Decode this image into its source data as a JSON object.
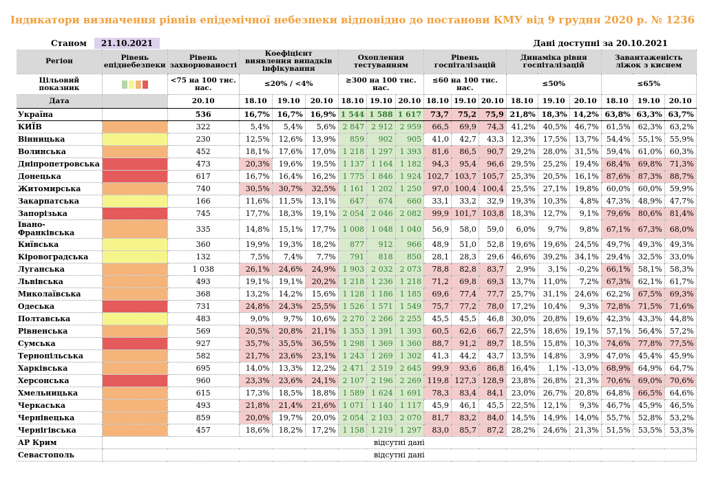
{
  "title": "Індикатори визначення рівнів епідемічної небезпеки відповідно до постанови КМУ від 9 грудня 2020 р. № 1236",
  "as_of_label": "Станом на",
  "as_of_date": "21.10.2021",
  "data_available": "Дані доступні за 20.10.2021",
  "colors": {
    "orange": "#f4b47a",
    "yellow": "#f6f58c",
    "red": "#e55a5a",
    "green": "#b6d7a8",
    "title": "#f0a03c"
  },
  "headers": {
    "region": "Регіон",
    "level": "Рівень епіднебезпеки",
    "incidence": "Рівень захворюваності",
    "detection": "Коефіцієнт виявлення випадків інфікування",
    "testing": "Охоплення тестуванням",
    "hosp": "Рівень госпіталізацій",
    "hosp_dyn": "Динаміка рівня госпіталізацій",
    "oxygen": "Завантаженість ліжок з киснем"
  },
  "targets": {
    "label": "Цільовий показник",
    "incidence": "<75 на 100 тис. нас.",
    "detection": "≤20% / <4%",
    "testing": "≥300 на 100 тис. нас.",
    "hosp": "≤60 на 100 тис. нас.",
    "hosp_dyn": "≤50%",
    "oxygen": "≤65%"
  },
  "date_row": {
    "label": "Дата",
    "incidence": "20.10",
    "d1": "18.10",
    "d2": "19.10",
    "d3": "20.10"
  },
  "missing_text": "відсутні дані",
  "rows": [
    {
      "name": "Україна",
      "level": "",
      "inc": "536",
      "det": [
        "16,7%",
        "16,7%",
        "16,9%"
      ],
      "test": [
        "1 544",
        "1 588",
        "1 617"
      ],
      "hosp": [
        "73,7",
        "75,2",
        "75,9"
      ],
      "dyn": [
        "21,8%",
        "18,3%",
        "14,2%"
      ],
      "oxy": [
        "63,8%",
        "63,3%",
        "63,7%"
      ],
      "detR": [
        0,
        0,
        0
      ],
      "hospR": [
        1,
        1,
        1
      ],
      "oxyR": [
        0,
        0,
        0
      ]
    },
    {
      "name": "КИЇВ",
      "level": "orange",
      "inc": "322",
      "det": [
        "5,4%",
        "5,4%",
        "5,6%"
      ],
      "test": [
        "2 847",
        "2 912",
        "2 959"
      ],
      "hosp": [
        "66,5",
        "69,9",
        "74,3"
      ],
      "dyn": [
        "41,2%",
        "40,5%",
        "46,7%"
      ],
      "oxy": [
        "61,5%",
        "62,3%",
        "63,2%"
      ],
      "detR": [
        0,
        0,
        0
      ],
      "hospR": [
        1,
        1,
        1
      ],
      "oxyR": [
        0,
        0,
        0
      ]
    },
    {
      "name": "Вінницька",
      "level": "yellow",
      "inc": "230",
      "det": [
        "12,5%",
        "12,6%",
        "13,9%"
      ],
      "test": [
        "859",
        "902",
        "905"
      ],
      "hosp": [
        "41,0",
        "42,7",
        "43,3"
      ],
      "dyn": [
        "12,3%",
        "17,5%",
        "13,7%"
      ],
      "oxy": [
        "54,4%",
        "55,1%",
        "55,9%"
      ],
      "detR": [
        0,
        0,
        0
      ],
      "hospR": [
        0,
        0,
        0
      ],
      "oxyR": [
        0,
        0,
        0
      ]
    },
    {
      "name": "Волинська",
      "level": "orange",
      "inc": "452",
      "det": [
        "18,1%",
        "17,6%",
        "17,0%"
      ],
      "test": [
        "1 218",
        "1 297",
        "1 393"
      ],
      "hosp": [
        "81,6",
        "86,5",
        "90,7"
      ],
      "dyn": [
        "29,2%",
        "28,0%",
        "31,5%"
      ],
      "oxy": [
        "59,4%",
        "61,0%",
        "60,3%"
      ],
      "detR": [
        0,
        0,
        0
      ],
      "hospR": [
        1,
        1,
        1
      ],
      "oxyR": [
        0,
        0,
        0
      ]
    },
    {
      "name": "Дніпропетровська",
      "level": "red",
      "inc": "473",
      "det": [
        "20,3%",
        "19,6%",
        "19,5%"
      ],
      "test": [
        "1 137",
        "1 164",
        "1 182"
      ],
      "hosp": [
        "94,3",
        "95,4",
        "96,6"
      ],
      "dyn": [
        "29,5%",
        "25,2%",
        "19,4%"
      ],
      "oxy": [
        "68,4%",
        "69,8%",
        "71,3%"
      ],
      "detR": [
        1,
        0,
        0
      ],
      "hospR": [
        1,
        1,
        1
      ],
      "oxyR": [
        1,
        1,
        1
      ]
    },
    {
      "name": "Донецька",
      "level": "red",
      "inc": "617",
      "det": [
        "16,7%",
        "16,4%",
        "16,2%"
      ],
      "test": [
        "1 775",
        "1 846",
        "1 924"
      ],
      "hosp": [
        "102,7",
        "103,7",
        "105,7"
      ],
      "dyn": [
        "25,3%",
        "20,5%",
        "16,1%"
      ],
      "oxy": [
        "87,6%",
        "87,3%",
        "88,7%"
      ],
      "detR": [
        0,
        0,
        0
      ],
      "hospR": [
        1,
        1,
        1
      ],
      "oxyR": [
        1,
        1,
        1
      ]
    },
    {
      "name": "Житомирська",
      "level": "orange",
      "inc": "740",
      "det": [
        "30,5%",
        "30,7%",
        "32,5%"
      ],
      "test": [
        "1 161",
        "1 202",
        "1 250"
      ],
      "hosp": [
        "97,0",
        "100,4",
        "100,4"
      ],
      "dyn": [
        "25,5%",
        "27,1%",
        "19,8%"
      ],
      "oxy": [
        "60,0%",
        "60,0%",
        "59,9%"
      ],
      "detR": [
        1,
        1,
        1
      ],
      "hospR": [
        1,
        1,
        1
      ],
      "oxyR": [
        0,
        0,
        0
      ]
    },
    {
      "name": "Закарпатська",
      "level": "yellow",
      "inc": "166",
      "det": [
        "11,6%",
        "11,5%",
        "13,1%"
      ],
      "test": [
        "647",
        "674",
        "660"
      ],
      "hosp": [
        "33,1",
        "33,2",
        "32,9"
      ],
      "dyn": [
        "19,3%",
        "10,3%",
        "4,8%"
      ],
      "oxy": [
        "47,3%",
        "48,9%",
        "47,7%"
      ],
      "detR": [
        0,
        0,
        0
      ],
      "hospR": [
        0,
        0,
        0
      ],
      "oxyR": [
        0,
        0,
        0
      ]
    },
    {
      "name": "Запорізька",
      "level": "red",
      "inc": "745",
      "det": [
        "17,7%",
        "18,3%",
        "19,1%"
      ],
      "test": [
        "2 054",
        "2 046",
        "2 082"
      ],
      "hosp": [
        "99,9",
        "101,7",
        "103,8"
      ],
      "dyn": [
        "18,3%",
        "12,7%",
        "9,1%"
      ],
      "oxy": [
        "79,6%",
        "80,6%",
        "81,4%"
      ],
      "detR": [
        0,
        0,
        0
      ],
      "hospR": [
        1,
        1,
        1
      ],
      "oxyR": [
        1,
        1,
        1
      ]
    },
    {
      "name": "Івано-Франківська",
      "level": "orange",
      "inc": "335",
      "det": [
        "14,8%",
        "15,1%",
        "17,7%"
      ],
      "test": [
        "1 008",
        "1 048",
        "1 040"
      ],
      "hosp": [
        "56,9",
        "58,0",
        "59,0"
      ],
      "dyn": [
        "6,0%",
        "9,7%",
        "9,8%"
      ],
      "oxy": [
        "67,1%",
        "67,3%",
        "68,0%"
      ],
      "detR": [
        0,
        0,
        0
      ],
      "hospR": [
        0,
        0,
        0
      ],
      "oxyR": [
        1,
        1,
        1
      ]
    },
    {
      "name": "Київська",
      "level": "yellow",
      "inc": "360",
      "det": [
        "19,9%",
        "19,3%",
        "18,2%"
      ],
      "test": [
        "877",
        "912",
        "966"
      ],
      "hosp": [
        "48,9",
        "51,0",
        "52,8"
      ],
      "dyn": [
        "19,6%",
        "19,6%",
        "24,5%"
      ],
      "oxy": [
        "49,7%",
        "49,3%",
        "49,3%"
      ],
      "detR": [
        0,
        0,
        0
      ],
      "hospR": [
        0,
        0,
        0
      ],
      "oxyR": [
        0,
        0,
        0
      ]
    },
    {
      "name": "Кіровоградська",
      "level": "yellow",
      "inc": "132",
      "det": [
        "7,5%",
        "7,4%",
        "7,7%"
      ],
      "test": [
        "791",
        "818",
        "850"
      ],
      "hosp": [
        "28,1",
        "28,3",
        "29,6"
      ],
      "dyn": [
        "46,6%",
        "39,2%",
        "34,1%"
      ],
      "oxy": [
        "29,4%",
        "32,5%",
        "33,0%"
      ],
      "detR": [
        0,
        0,
        0
      ],
      "hospR": [
        0,
        0,
        0
      ],
      "oxyR": [
        0,
        0,
        0
      ]
    },
    {
      "name": "Луганська",
      "level": "orange",
      "inc": "1 038",
      "det": [
        "26,1%",
        "24,6%",
        "24,9%"
      ],
      "test": [
        "1 903",
        "2 032",
        "2 073"
      ],
      "hosp": [
        "78,8",
        "82,8",
        "83,7"
      ],
      "dyn": [
        "2,9%",
        "3,1%",
        "-0,2%"
      ],
      "oxy": [
        "66,1%",
        "58,1%",
        "58,3%"
      ],
      "detR": [
        1,
        1,
        1
      ],
      "hospR": [
        1,
        1,
        1
      ],
      "oxyR": [
        1,
        0,
        0
      ]
    },
    {
      "name": "Львівська",
      "level": "orange",
      "inc": "493",
      "det": [
        "19,1%",
        "19,1%",
        "20,2%"
      ],
      "test": [
        "1 218",
        "1 236",
        "1 218"
      ],
      "hosp": [
        "71,2",
        "69,8",
        "69,3"
      ],
      "dyn": [
        "13,7%",
        "11,0%",
        "7,2%"
      ],
      "oxy": [
        "67,3%",
        "62,1%",
        "61,7%"
      ],
      "detR": [
        0,
        0,
        1
      ],
      "hospR": [
        1,
        1,
        1
      ],
      "oxyR": [
        1,
        0,
        0
      ]
    },
    {
      "name": "Миколаївська",
      "level": "orange",
      "inc": "368",
      "det": [
        "13,2%",
        "14,2%",
        "15,6%"
      ],
      "test": [
        "1 128",
        "1 186",
        "1 185"
      ],
      "hosp": [
        "69,6",
        "77,4",
        "77,7"
      ],
      "dyn": [
        "25,7%",
        "31,1%",
        "24,6%"
      ],
      "oxy": [
        "62,2%",
        "67,5%",
        "69,3%"
      ],
      "detR": [
        0,
        0,
        0
      ],
      "hospR": [
        1,
        1,
        1
      ],
      "oxyR": [
        0,
        1,
        1
      ]
    },
    {
      "name": "Одеська",
      "level": "red",
      "inc": "731",
      "det": [
        "24,8%",
        "24,3%",
        "25,5%"
      ],
      "test": [
        "1 526",
        "1 571",
        "1 549"
      ],
      "hosp": [
        "75,7",
        "77,2",
        "78,0"
      ],
      "dyn": [
        "17,2%",
        "10,4%",
        "9,3%"
      ],
      "oxy": [
        "72,8%",
        "71,5%",
        "71,6%"
      ],
      "detR": [
        1,
        1,
        1
      ],
      "hospR": [
        1,
        1,
        1
      ],
      "oxyR": [
        1,
        1,
        1
      ]
    },
    {
      "name": "Полтавська",
      "level": "yellow",
      "inc": "483",
      "det": [
        "9,0%",
        "9,7%",
        "10,6%"
      ],
      "test": [
        "2 270",
        "2 266",
        "2 255"
      ],
      "hosp": [
        "45,5",
        "45,5",
        "46,8"
      ],
      "dyn": [
        "30,0%",
        "20,8%",
        "19,6%"
      ],
      "oxy": [
        "42,3%",
        "43,3%",
        "44,8%"
      ],
      "detR": [
        0,
        0,
        0
      ],
      "hospR": [
        0,
        0,
        0
      ],
      "oxyR": [
        0,
        0,
        0
      ]
    },
    {
      "name": "Рівненська",
      "level": "orange",
      "inc": "569",
      "det": [
        "20,5%",
        "20,8%",
        "21,1%"
      ],
      "test": [
        "1 353",
        "1 391",
        "1 393"
      ],
      "hosp": [
        "60,5",
        "62,6",
        "66,7"
      ],
      "dyn": [
        "22,5%",
        "18,6%",
        "19,1%"
      ],
      "oxy": [
        "57,1%",
        "56,4%",
        "57,2%"
      ],
      "detR": [
        1,
        1,
        1
      ],
      "hospR": [
        1,
        1,
        1
      ],
      "oxyR": [
        0,
        0,
        0
      ]
    },
    {
      "name": "Сумська",
      "level": "red",
      "inc": "927",
      "det": [
        "35,7%",
        "35,5%",
        "36,5%"
      ],
      "test": [
        "1 298",
        "1 369",
        "1 360"
      ],
      "hosp": [
        "88,7",
        "91,2",
        "89,7"
      ],
      "dyn": [
        "18,5%",
        "15,8%",
        "10,3%"
      ],
      "oxy": [
        "74,6%",
        "77,8%",
        "77,5%"
      ],
      "detR": [
        1,
        1,
        1
      ],
      "hospR": [
        1,
        1,
        1
      ],
      "oxyR": [
        1,
        1,
        1
      ]
    },
    {
      "name": "Тернопільська",
      "level": "orange",
      "inc": "582",
      "det": [
        "21,7%",
        "23,6%",
        "23,1%"
      ],
      "test": [
        "1 243",
        "1 269",
        "1 302"
      ],
      "hosp": [
        "41,3",
        "44,2",
        "43,7"
      ],
      "dyn": [
        "13,5%",
        "14,8%",
        "3,9%"
      ],
      "oxy": [
        "47,0%",
        "45,4%",
        "45,9%"
      ],
      "detR": [
        1,
        1,
        1
      ],
      "hospR": [
        0,
        0,
        0
      ],
      "oxyR": [
        0,
        0,
        0
      ]
    },
    {
      "name": "Харківська",
      "level": "orange",
      "inc": "695",
      "det": [
        "14,0%",
        "13,3%",
        "12,2%"
      ],
      "test": [
        "2 471",
        "2 519",
        "2 645"
      ],
      "hosp": [
        "99,9",
        "93,6",
        "86,8"
      ],
      "dyn": [
        "16,4%",
        "1,1%",
        "-13,0%"
      ],
      "oxy": [
        "68,9%",
        "64,9%",
        "64,7%"
      ],
      "detR": [
        0,
        0,
        0
      ],
      "hospR": [
        1,
        1,
        1
      ],
      "oxyR": [
        1,
        0,
        0
      ]
    },
    {
      "name": "Херсонська",
      "level": "red",
      "inc": "960",
      "det": [
        "23,3%",
        "23,6%",
        "24,1%"
      ],
      "test": [
        "2 107",
        "2 196",
        "2 269"
      ],
      "hosp": [
        "119,8",
        "127,3",
        "128,9"
      ],
      "dyn": [
        "23,8%",
        "26,8%",
        "21,3%"
      ],
      "oxy": [
        "70,6%",
        "69,0%",
        "70,6%"
      ],
      "detR": [
        1,
        1,
        1
      ],
      "hospR": [
        1,
        1,
        1
      ],
      "oxyR": [
        1,
        1,
        1
      ]
    },
    {
      "name": "Хмельницька",
      "level": "orange",
      "inc": "615",
      "det": [
        "17,3%",
        "18,5%",
        "18,8%"
      ],
      "test": [
        "1 589",
        "1 624",
        "1 691"
      ],
      "hosp": [
        "78,3",
        "83,4",
        "84,1"
      ],
      "dyn": [
        "23,0%",
        "26,7%",
        "20,8%"
      ],
      "oxy": [
        "64,8%",
        "66,5%",
        "64,6%"
      ],
      "detR": [
        0,
        0,
        0
      ],
      "hospR": [
        1,
        1,
        1
      ],
      "oxyR": [
        0,
        1,
        0
      ]
    },
    {
      "name": "Черкаська",
      "level": "orange",
      "inc": "493",
      "det": [
        "21,8%",
        "21,4%",
        "21,6%"
      ],
      "test": [
        "1 071",
        "1 140",
        "1 117"
      ],
      "hosp": [
        "45,9",
        "46,1",
        "45,5"
      ],
      "dyn": [
        "22,5%",
        "12,1%",
        "9,3%"
      ],
      "oxy": [
        "46,7%",
        "45,9%",
        "46,5%"
      ],
      "detR": [
        1,
        1,
        1
      ],
      "hospR": [
        0,
        0,
        0
      ],
      "oxyR": [
        0,
        0,
        0
      ]
    },
    {
      "name": "Чернівецька",
      "level": "orange",
      "inc": "859",
      "det": [
        "20,0%",
        "19,7%",
        "20,0%"
      ],
      "test": [
        "2 054",
        "2 103",
        "2 070"
      ],
      "hosp": [
        "81,7",
        "83,2",
        "84,0"
      ],
      "dyn": [
        "14,5%",
        "14,9%",
        "14,0%"
      ],
      "oxy": [
        "55,7%",
        "52,8%",
        "53,2%"
      ],
      "detR": [
        1,
        0,
        0
      ],
      "hospR": [
        1,
        1,
        1
      ],
      "oxyR": [
        0,
        0,
        0
      ]
    },
    {
      "name": "Чернігівська",
      "level": "orange",
      "inc": "457",
      "det": [
        "18,6%",
        "18,2%",
        "17,2%"
      ],
      "test": [
        "1 158",
        "1 219",
        "1 297"
      ],
      "hosp": [
        "83,0",
        "85,7",
        "87,2"
      ],
      "dyn": [
        "28,2%",
        "24,6%",
        "21,3%"
      ],
      "oxy": [
        "51,5%",
        "53,5%",
        "53,3%"
      ],
      "detR": [
        0,
        0,
        0
      ],
      "hospR": [
        1,
        1,
        1
      ],
      "oxyR": [
        0,
        0,
        0
      ]
    }
  ],
  "missing_rows": [
    "АР Крим",
    "Севастополь"
  ]
}
